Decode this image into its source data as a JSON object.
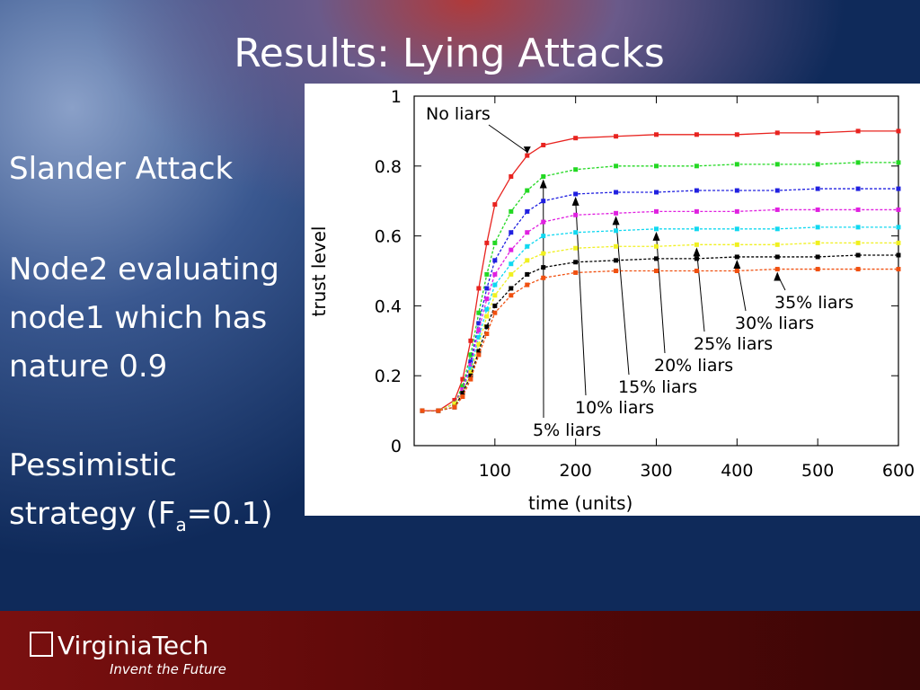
{
  "slide": {
    "title": "Results: Lying Attacks",
    "body": [
      "Slander Attack",
      "Node2 evaluating",
      "node1 which has",
      "nature 0.9",
      "Pessimistic"
    ],
    "strategy": [
      "strategy (F",
      "a",
      "=0.1)"
    ],
    "logo": "VirginiaTech",
    "tagline": "Invent the Future"
  },
  "chart_data": {
    "type": "line",
    "xlabel": "time (units)",
    "ylabel": "trust level",
    "x": [
      10,
      30,
      50,
      60,
      70,
      80,
      90,
      100,
      120,
      140,
      160,
      200,
      250,
      300,
      350,
      400,
      450,
      500,
      550,
      600
    ],
    "xlim": [
      0,
      600
    ],
    "xticks": [
      100,
      200,
      300,
      400,
      500,
      600
    ],
    "ylim": [
      0,
      1
    ],
    "yticks": [
      0,
      0.2,
      0.4,
      0.6,
      0.8,
      1
    ],
    "series": [
      {
        "name": "No liars",
        "color": "#e8231f",
        "values": [
          0.1,
          0.1,
          0.13,
          0.19,
          0.3,
          0.45,
          0.58,
          0.69,
          0.77,
          0.83,
          0.86,
          0.88,
          0.885,
          0.89,
          0.89,
          0.89,
          0.895,
          0.895,
          0.9,
          0.9
        ]
      },
      {
        "name": "5% liars",
        "color": "#22d822",
        "values": [
          0.1,
          0.1,
          0.12,
          0.17,
          0.26,
          0.38,
          0.49,
          0.58,
          0.67,
          0.73,
          0.77,
          0.79,
          0.8,
          0.8,
          0.8,
          0.805,
          0.805,
          0.805,
          0.81,
          0.81
        ]
      },
      {
        "name": "10% liars",
        "color": "#2020e0",
        "values": [
          0.1,
          0.1,
          0.12,
          0.16,
          0.24,
          0.35,
          0.45,
          0.53,
          0.61,
          0.67,
          0.7,
          0.72,
          0.725,
          0.725,
          0.73,
          0.73,
          0.73,
          0.735,
          0.735,
          0.735
        ]
      },
      {
        "name": "15% liars",
        "color": "#e020e0",
        "values": [
          0.1,
          0.1,
          0.12,
          0.16,
          0.23,
          0.33,
          0.42,
          0.49,
          0.56,
          0.61,
          0.64,
          0.66,
          0.665,
          0.67,
          0.67,
          0.67,
          0.675,
          0.675,
          0.675,
          0.675
        ]
      },
      {
        "name": "20% liars",
        "color": "#10d8f0",
        "values": [
          0.1,
          0.1,
          0.12,
          0.15,
          0.22,
          0.31,
          0.39,
          0.46,
          0.52,
          0.57,
          0.6,
          0.61,
          0.615,
          0.62,
          0.62,
          0.62,
          0.62,
          0.625,
          0.625,
          0.625
        ]
      },
      {
        "name": "25% liars",
        "color": "#f0f020",
        "values": [
          0.1,
          0.1,
          0.12,
          0.15,
          0.21,
          0.29,
          0.37,
          0.43,
          0.49,
          0.53,
          0.55,
          0.565,
          0.57,
          0.57,
          0.575,
          0.575,
          0.575,
          0.58,
          0.58,
          0.58
        ]
      },
      {
        "name": "30% liars",
        "color": "#000000",
        "values": [
          0.1,
          0.1,
          0.11,
          0.15,
          0.2,
          0.27,
          0.34,
          0.4,
          0.45,
          0.49,
          0.51,
          0.525,
          0.53,
          0.535,
          0.535,
          0.54,
          0.54,
          0.54,
          0.545,
          0.545
        ]
      },
      {
        "name": "35% liars",
        "color": "#f05010",
        "values": [
          0.1,
          0.1,
          0.11,
          0.14,
          0.19,
          0.26,
          0.32,
          0.38,
          0.43,
          0.46,
          0.48,
          0.495,
          0.5,
          0.5,
          0.5,
          0.5,
          0.505,
          0.505,
          0.505,
          0.505
        ]
      }
    ]
  }
}
